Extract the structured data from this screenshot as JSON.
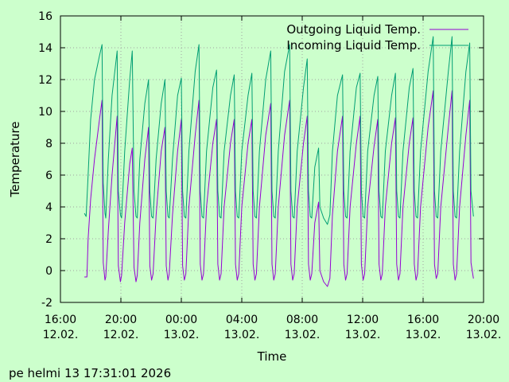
{
  "chart_data": {
    "type": "line",
    "xlabel": "Time",
    "ylabel": "Temperature",
    "ylim": [
      -2,
      16
    ],
    "yticks": [
      -2,
      0,
      2,
      4,
      6,
      8,
      10,
      12,
      14,
      16
    ],
    "xlim_hours": [
      16,
      44
    ],
    "xticks": [
      {
        "time": "16:00",
        "date": "12.02."
      },
      {
        "time": "20:00",
        "date": "12.02."
      },
      {
        "time": "00:00",
        "date": "13.02."
      },
      {
        "time": "04:00",
        "date": "13.02."
      },
      {
        "time": "08:00",
        "date": "13.02."
      },
      {
        "time": "12:00",
        "date": "13.02."
      },
      {
        "time": "16:00",
        "date": "13.02."
      },
      {
        "time": "20:00",
        "date": "13.02."
      }
    ],
    "grid": true,
    "legend_position": "top-right",
    "series": [
      {
        "name": "Outgoing Liquid Temp.",
        "color": "#9400d3",
        "points": [
          [
            "17:35",
            -0.4
          ],
          [
            "17:45",
            -0.4
          ],
          [
            "17:50",
            2.0
          ],
          [
            "18:00",
            4.5
          ],
          [
            "18:15",
            7.0
          ],
          [
            "18:35",
            9.5
          ],
          [
            "18:45",
            10.7
          ],
          [
            "18:50",
            0.5
          ],
          [
            "18:57",
            -0.6
          ],
          [
            "19:00",
            -0.4
          ],
          [
            "19:10",
            2.5
          ],
          [
            "19:25",
            6.0
          ],
          [
            "19:45",
            9.7
          ],
          [
            "19:50",
            0.3
          ],
          [
            "19:58",
            -0.7
          ],
          [
            "20:03",
            -0.3
          ],
          [
            "20:15",
            3.0
          ],
          [
            "20:35",
            6.7
          ],
          [
            "20:45",
            7.7
          ],
          [
            "20:52",
            0.2
          ],
          [
            "21:00",
            -0.7
          ],
          [
            "21:05",
            -0.3
          ],
          [
            "21:15",
            3.0
          ],
          [
            "21:35",
            7.0
          ],
          [
            "21:50",
            9.0
          ],
          [
            "21:55",
            0.3
          ],
          [
            "22:02",
            -0.6
          ],
          [
            "22:08",
            -0.2
          ],
          [
            "22:20",
            3.5
          ],
          [
            "22:40",
            7.5
          ],
          [
            "22:55",
            9.0
          ],
          [
            "23:00",
            0.3
          ],
          [
            "23:07",
            -0.6
          ],
          [
            "23:12",
            -0.2
          ],
          [
            "23:25",
            3.5
          ],
          [
            "23:45",
            7.5
          ],
          [
            "24:00",
            9.5
          ],
          [
            "24:05",
            0.3
          ],
          [
            "24:12",
            -0.6
          ],
          [
            "24:18",
            -0.2
          ],
          [
            "24:30",
            4.0
          ],
          [
            "24:55",
            8.5
          ],
          [
            "25:10",
            10.7
          ],
          [
            "25:15",
            0.4
          ],
          [
            "25:22",
            -0.6
          ],
          [
            "25:28",
            -0.2
          ],
          [
            "25:40",
            4.0
          ],
          [
            "26:05",
            8.0
          ],
          [
            "26:20",
            9.5
          ],
          [
            "26:25",
            0.4
          ],
          [
            "26:32",
            -0.6
          ],
          [
            "26:38",
            -0.2
          ],
          [
            "26:50",
            4.0
          ],
          [
            "27:15",
            8.0
          ],
          [
            "27:30",
            9.5
          ],
          [
            "27:35",
            0.4
          ],
          [
            "27:42",
            -0.6
          ],
          [
            "27:48",
            -0.2
          ],
          [
            "28:00",
            4.0
          ],
          [
            "28:25",
            8.0
          ],
          [
            "28:40",
            9.5
          ],
          [
            "28:45",
            0.4
          ],
          [
            "28:52",
            -0.6
          ],
          [
            "28:58",
            -0.2
          ],
          [
            "29:10",
            4.0
          ],
          [
            "29:35",
            8.5
          ],
          [
            "29:55",
            10.5
          ],
          [
            "30:00",
            0.4
          ],
          [
            "30:07",
            -0.6
          ],
          [
            "30:13",
            -0.2
          ],
          [
            "30:25",
            4.0
          ],
          [
            "30:50",
            8.5
          ],
          [
            "31:10",
            10.7
          ],
          [
            "31:15",
            0.4
          ],
          [
            "31:22",
            -0.6
          ],
          [
            "31:28",
            -0.2
          ],
          [
            "31:40",
            4.0
          ],
          [
            "32:05",
            8.0
          ],
          [
            "32:20",
            9.7
          ],
          [
            "32:25",
            0.4
          ],
          [
            "32:32",
            -0.6
          ],
          [
            "32:38",
            -0.2
          ],
          [
            "32:50",
            3.0
          ],
          [
            "33:05",
            4.3
          ],
          [
            "33:10",
            0.0
          ],
          [
            "33:25",
            -0.7
          ],
          [
            "33:40",
            -1.0
          ],
          [
            "33:50",
            -0.5
          ],
          [
            "34:00",
            3.5
          ],
          [
            "34:20",
            7.5
          ],
          [
            "34:40",
            9.7
          ],
          [
            "34:45",
            0.4
          ],
          [
            "34:52",
            -0.6
          ],
          [
            "34:58",
            -0.2
          ],
          [
            "35:10",
            4.0
          ],
          [
            "35:35",
            8.0
          ],
          [
            "35:50",
            9.7
          ],
          [
            "35:55",
            0.4
          ],
          [
            "36:02",
            -0.6
          ],
          [
            "36:08",
            -0.2
          ],
          [
            "36:20",
            4.0
          ],
          [
            "36:45",
            7.8
          ],
          [
            "37:00",
            9.5
          ],
          [
            "37:05",
            0.4
          ],
          [
            "37:12",
            -0.6
          ],
          [
            "37:18",
            -0.2
          ],
          [
            "37:30",
            4.0
          ],
          [
            "37:55",
            8.0
          ],
          [
            "38:10",
            9.6
          ],
          [
            "38:15",
            0.4
          ],
          [
            "38:22",
            -0.6
          ],
          [
            "38:28",
            -0.2
          ],
          [
            "38:40",
            4.0
          ],
          [
            "39:05",
            8.0
          ],
          [
            "39:20",
            9.6
          ],
          [
            "39:25",
            0.4
          ],
          [
            "39:32",
            -0.6
          ],
          [
            "39:38",
            -0.2
          ],
          [
            "39:50",
            4.0
          ],
          [
            "40:20",
            9.0
          ],
          [
            "40:40",
            11.3
          ],
          [
            "40:45",
            0.4
          ],
          [
            "40:52",
            -0.5
          ],
          [
            "40:58",
            -0.2
          ],
          [
            "41:10",
            4.0
          ],
          [
            "41:40",
            9.0
          ],
          [
            "41:55",
            11.3
          ],
          [
            "42:00",
            0.4
          ],
          [
            "42:07",
            -0.6
          ],
          [
            "42:13",
            -0.2
          ],
          [
            "42:25",
            4.0
          ],
          [
            "42:50",
            8.5
          ],
          [
            "43:05",
            10.7
          ],
          [
            "43:10",
            0.5
          ],
          [
            "43:20",
            -0.5
          ]
        ]
      },
      {
        "name": "Incoming Liquid Temp.",
        "color": "#009e73",
        "points": [
          [
            "17:35",
            3.6
          ],
          [
            "17:42",
            3.4
          ],
          [
            "17:50",
            6.0
          ],
          [
            "18:00",
            9.5
          ],
          [
            "18:15",
            12.0
          ],
          [
            "18:35",
            13.5
          ],
          [
            "18:45",
            14.2
          ],
          [
            "18:50",
            5.5
          ],
          [
            "18:57",
            3.6
          ],
          [
            "19:00",
            3.3
          ],
          [
            "19:10",
            7.0
          ],
          [
            "19:25",
            11.0
          ],
          [
            "19:45",
            13.8
          ],
          [
            "19:50",
            5.0
          ],
          [
            "19:58",
            3.5
          ],
          [
            "20:03",
            3.3
          ],
          [
            "20:15",
            7.5
          ],
          [
            "20:35",
            12.0
          ],
          [
            "20:45",
            13.8
          ],
          [
            "20:52",
            5.0
          ],
          [
            "21:00",
            3.4
          ],
          [
            "21:05",
            3.3
          ],
          [
            "21:15",
            7.0
          ],
          [
            "21:35",
            10.5
          ],
          [
            "21:50",
            12.0
          ],
          [
            "21:55",
            5.0
          ],
          [
            "22:02",
            3.4
          ],
          [
            "22:08",
            3.3
          ],
          [
            "22:20",
            7.0
          ],
          [
            "22:40",
            10.5
          ],
          [
            "22:55",
            12.0
          ],
          [
            "23:00",
            5.0
          ],
          [
            "23:07",
            3.4
          ],
          [
            "23:12",
            3.3
          ],
          [
            "23:25",
            7.0
          ],
          [
            "23:45",
            11.0
          ],
          [
            "24:00",
            12.1
          ],
          [
            "24:05",
            5.0
          ],
          [
            "24:12",
            3.4
          ],
          [
            "24:18",
            3.3
          ],
          [
            "24:30",
            7.5
          ],
          [
            "24:55",
            12.5
          ],
          [
            "25:10",
            14.2
          ],
          [
            "25:15",
            5.0
          ],
          [
            "25:22",
            3.4
          ],
          [
            "25:28",
            3.3
          ],
          [
            "25:40",
            7.5
          ],
          [
            "26:05",
            11.5
          ],
          [
            "26:20",
            12.6
          ],
          [
            "26:25",
            5.0
          ],
          [
            "26:32",
            3.4
          ],
          [
            "26:38",
            3.3
          ],
          [
            "26:50",
            7.5
          ],
          [
            "27:15",
            11.0
          ],
          [
            "27:30",
            12.3
          ],
          [
            "27:35",
            5.0
          ],
          [
            "27:42",
            3.4
          ],
          [
            "27:48",
            3.3
          ],
          [
            "28:00",
            7.5
          ],
          [
            "28:25",
            11.0
          ],
          [
            "28:40",
            12.4
          ],
          [
            "28:45",
            5.0
          ],
          [
            "28:52",
            3.4
          ],
          [
            "28:58",
            3.3
          ],
          [
            "29:10",
            7.5
          ],
          [
            "29:35",
            12.0
          ],
          [
            "29:55",
            13.8
          ],
          [
            "30:00",
            5.0
          ],
          [
            "30:07",
            3.4
          ],
          [
            "30:13",
            3.3
          ],
          [
            "30:25",
            7.5
          ],
          [
            "30:50",
            12.5
          ],
          [
            "31:10",
            14.2
          ],
          [
            "31:15",
            5.0
          ],
          [
            "31:22",
            3.4
          ],
          [
            "31:28",
            3.3
          ],
          [
            "31:40",
            7.5
          ],
          [
            "32:05",
            11.5
          ],
          [
            "32:20",
            13.3
          ],
          [
            "32:25",
            5.0
          ],
          [
            "32:32",
            3.4
          ],
          [
            "32:38",
            3.3
          ],
          [
            "32:50",
            6.5
          ],
          [
            "33:05",
            7.7
          ],
          [
            "33:10",
            4.0
          ],
          [
            "33:25",
            3.3
          ],
          [
            "33:40",
            2.9
          ],
          [
            "33:50",
            3.5
          ],
          [
            "34:00",
            7.5
          ],
          [
            "34:20",
            11.0
          ],
          [
            "34:40",
            12.3
          ],
          [
            "34:45",
            5.0
          ],
          [
            "34:52",
            3.4
          ],
          [
            "34:58",
            3.3
          ],
          [
            "35:10",
            7.5
          ],
          [
            "35:35",
            11.5
          ],
          [
            "35:50",
            12.4
          ],
          [
            "35:55",
            5.0
          ],
          [
            "36:02",
            3.4
          ],
          [
            "36:08",
            3.3
          ],
          [
            "36:20",
            7.5
          ],
          [
            "36:45",
            11.0
          ],
          [
            "37:00",
            12.2
          ],
          [
            "37:05",
            5.0
          ],
          [
            "37:12",
            3.4
          ],
          [
            "37:18",
            3.3
          ],
          [
            "37:30",
            7.5
          ],
          [
            "37:55",
            11.0
          ],
          [
            "38:10",
            12.4
          ],
          [
            "38:15",
            5.0
          ],
          [
            "38:22",
            3.4
          ],
          [
            "38:28",
            3.3
          ],
          [
            "38:40",
            7.5
          ],
          [
            "39:05",
            11.5
          ],
          [
            "39:20",
            12.7
          ],
          [
            "39:25",
            5.0
          ],
          [
            "39:32",
            3.4
          ],
          [
            "39:38",
            3.3
          ],
          [
            "39:50",
            7.5
          ],
          [
            "40:20",
            12.5
          ],
          [
            "40:40",
            14.7
          ],
          [
            "40:45",
            5.0
          ],
          [
            "40:52",
            3.4
          ],
          [
            "40:58",
            3.3
          ],
          [
            "41:10",
            7.5
          ],
          [
            "41:40",
            12.5
          ],
          [
            "41:55",
            14.7
          ],
          [
            "42:00",
            5.0
          ],
          [
            "42:07",
            3.4
          ],
          [
            "42:13",
            3.3
          ],
          [
            "42:25",
            7.5
          ],
          [
            "42:50",
            12.5
          ],
          [
            "43:05",
            14.3
          ],
          [
            "43:10",
            5.0
          ],
          [
            "43:20",
            3.4
          ]
        ]
      }
    ]
  },
  "footer": {
    "timestamp": "pe helmi 13 17:31:01 2026"
  }
}
